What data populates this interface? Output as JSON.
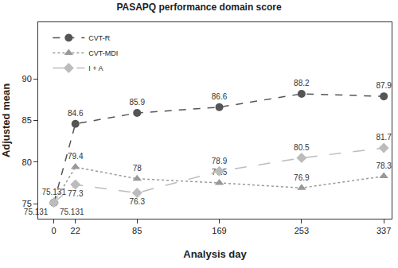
{
  "chart_data": {
    "type": "line",
    "title": "PASAPQ performance domain score",
    "x_label": "Analysis day",
    "y_label": "Adjusted mean",
    "x": [
      0,
      22,
      85,
      169,
      253,
      337
    ],
    "series": [
      {
        "name": "CVT-R",
        "color": "#555555",
        "marker": "circle",
        "line_style": "dash",
        "values": [
          75.131,
          84.6,
          85.9,
          86.6,
          88.2,
          87.9
        ]
      },
      {
        "name": "CVT-MDI",
        "color": "#999999",
        "marker": "triangle-up",
        "line_style": "dot",
        "values": [
          75.131,
          79.4,
          78,
          77.5,
          76.9,
          78.3
        ]
      },
      {
        "name": "I + A",
        "color": "#bcbcbc",
        "marker": "diamond",
        "line_style": "longdash",
        "values": [
          75.131,
          77.3,
          76.3,
          78.9,
          80.5,
          81.7
        ]
      }
    ],
    "xlim": [
      -16,
      345
    ],
    "xticks": [
      0,
      22,
      85,
      169,
      253,
      337
    ],
    "ylim": [
      73.2,
      96.8
    ],
    "yticks": [
      75,
      80,
      85,
      90
    ],
    "grid": false,
    "legend": "top left",
    "data_labels": true
  }
}
